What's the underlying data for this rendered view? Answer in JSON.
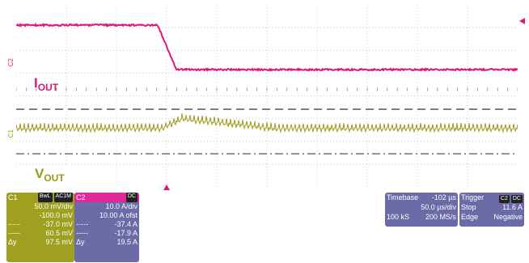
{
  "traces": {
    "iout": {
      "label_main": "I",
      "label_sub": "OUT",
      "tag": "C2",
      "color": "#d91a78"
    },
    "vout": {
      "label_main": "V",
      "label_sub": "OUT",
      "tag": "C1",
      "color": "#9a9a1a"
    }
  },
  "c1_panel": {
    "name": "C1",
    "badge1": "BwL",
    "badge2": "AC1M",
    "vdiv": "50.0 mV/div",
    "offset": "-100.0 mV",
    "m1": "-37.0 mV",
    "m2": "60.5 mV",
    "dy_label": "Δy",
    "dy": "97.5 mV",
    "color": "#9a9a1a"
  },
  "c2_panel": {
    "name": "C2",
    "badge": "DC",
    "adiv": "10.0 A/div",
    "offset": "10.00 A ofst",
    "m1": "-37.4 A",
    "m2": "-17.9 A",
    "dy_label": "Δy",
    "dy": "19.5 A",
    "color": "#6b6ba8",
    "header_color": "#e0289a"
  },
  "timebase": {
    "label": "Timebase",
    "value": "-102 µs",
    "div": "50.0 µs/div",
    "samples": "100 kS",
    "rate": "200 MS/s"
  },
  "trigger": {
    "label": "Trigger",
    "badge1": "C2",
    "badge2": "DC",
    "mode": "Stop",
    "level": "11.6 A",
    "type": "Edge",
    "slope": "Negative"
  }
}
